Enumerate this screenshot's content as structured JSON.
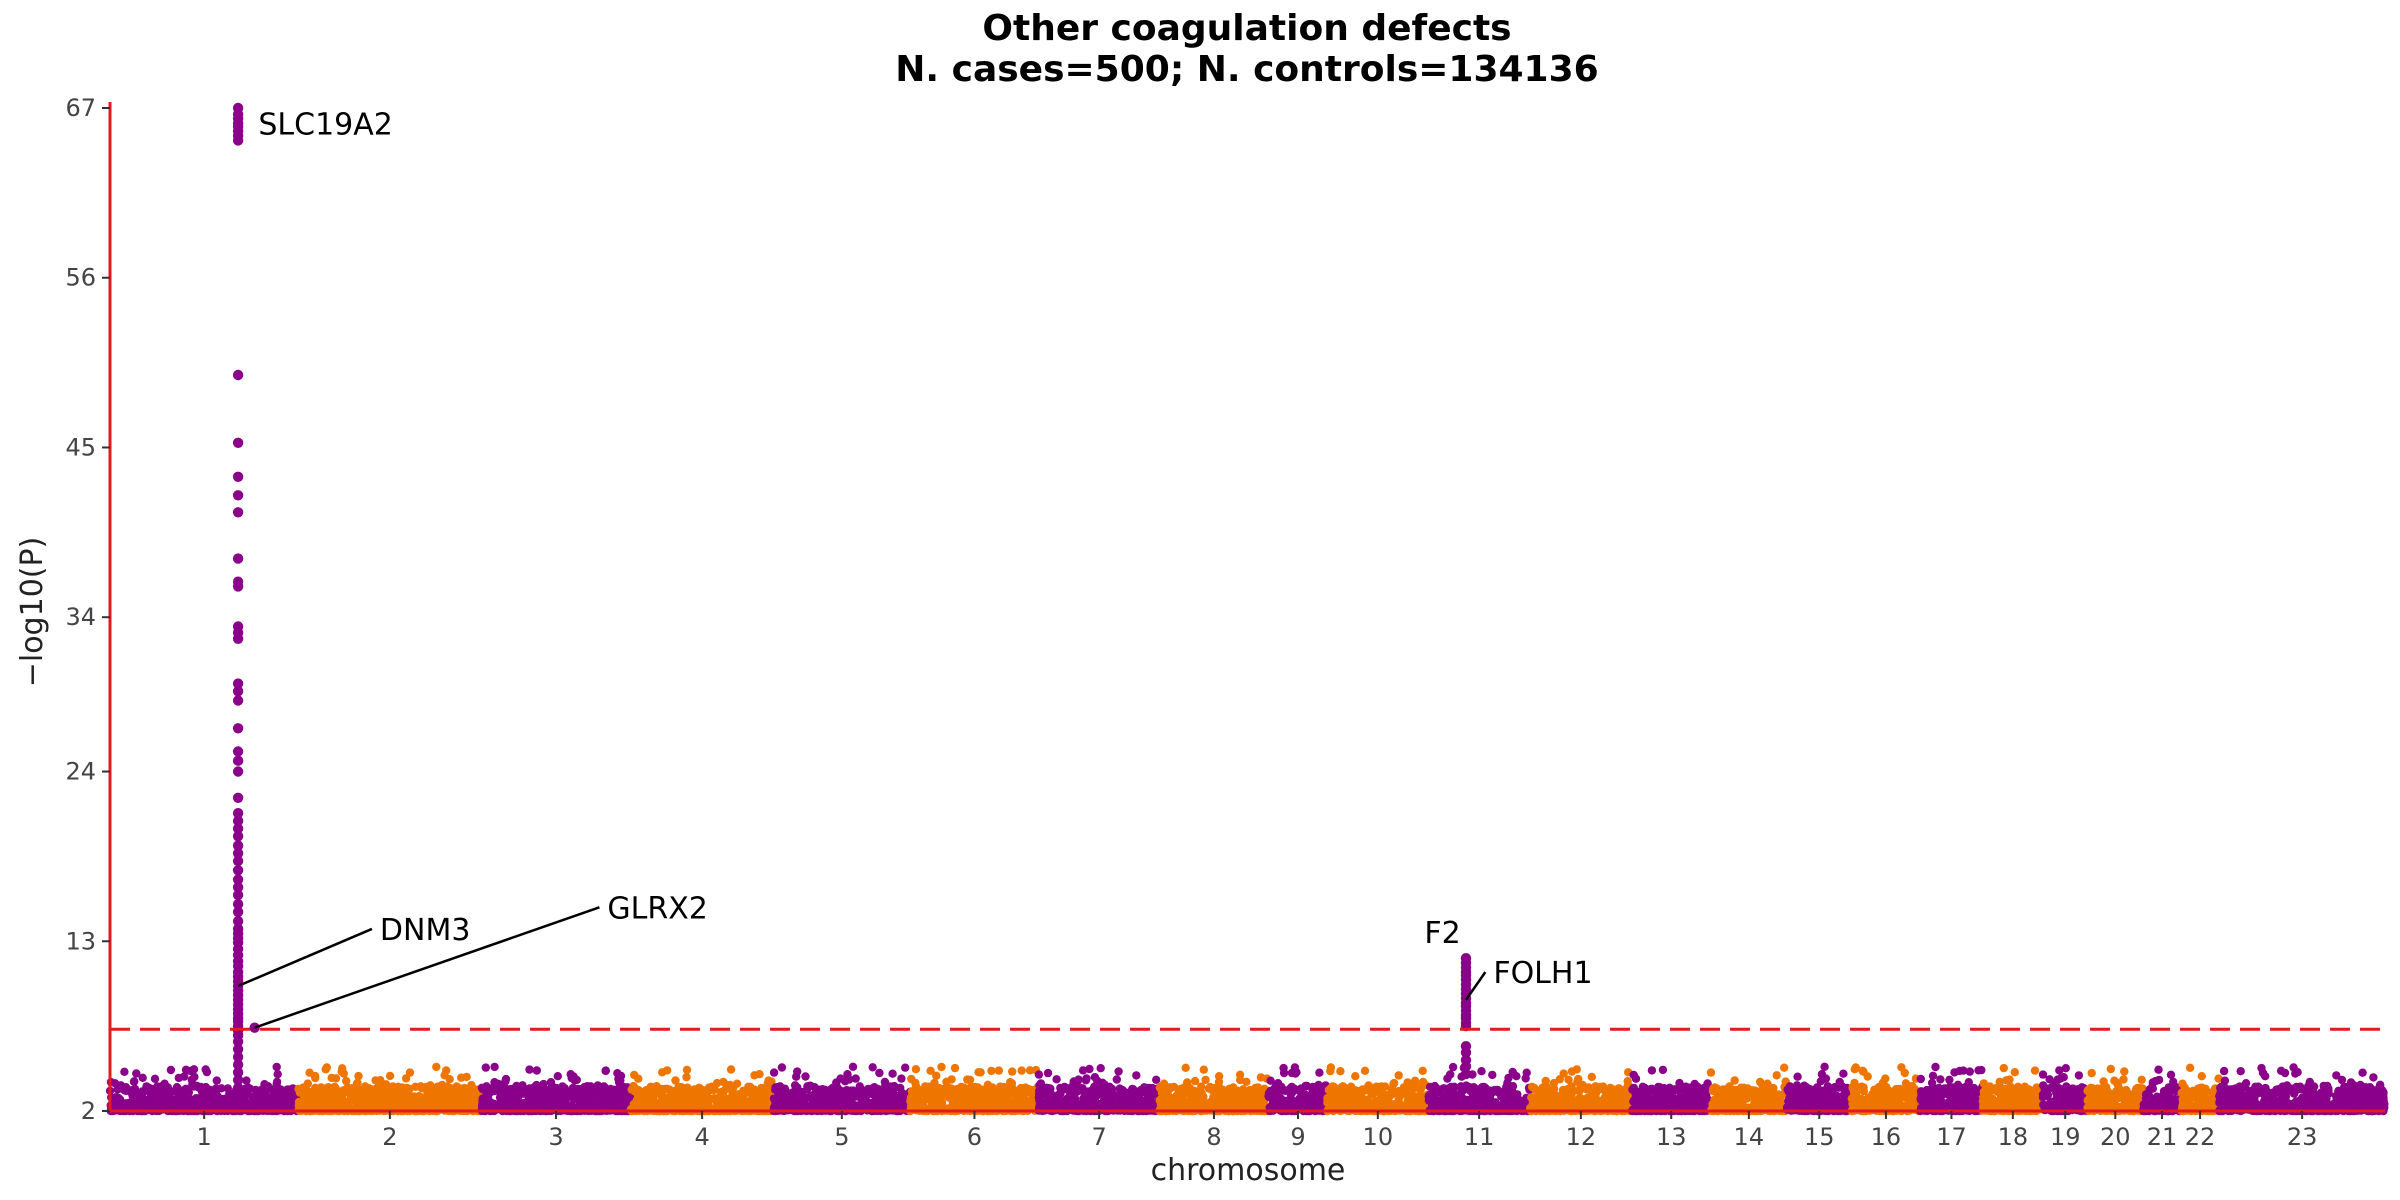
{
  "chart_data": {
    "type": "scatter",
    "subtype": "manhattan",
    "title": "Other coagulation defects",
    "subtitle": "N. cases=500; N. controls=134136",
    "xlabel": "chromosome",
    "ylabel": "−log10(P)",
    "ylim": [
      2,
      67
    ],
    "yticks": [
      2,
      13,
      24,
      34,
      45,
      56,
      67
    ],
    "significance_threshold": 7.3,
    "grid": false,
    "colors": {
      "odd": "#8B008B",
      "even": "#EE7600",
      "axis": "#E41A1C",
      "threshold": "#E41A1C"
    },
    "chromosomes": [
      {
        "label": "1",
        "start": 0,
        "end": 250
      },
      {
        "label": "2",
        "start": 250,
        "end": 493
      },
      {
        "label": "3",
        "start": 493,
        "end": 691
      },
      {
        "label": "4",
        "start": 691,
        "end": 881
      },
      {
        "label": "5",
        "start": 881,
        "end": 1062
      },
      {
        "label": "6",
        "start": 1062,
        "end": 1233
      },
      {
        "label": "7",
        "start": 1233,
        "end": 1393
      },
      {
        "label": "8",
        "start": 1393,
        "end": 1538
      },
      {
        "label": "9",
        "start": 1538,
        "end": 1616
      },
      {
        "label": "10",
        "start": 1616,
        "end": 1750
      },
      {
        "label": "11",
        "start": 1750,
        "end": 1885
      },
      {
        "label": "12",
        "start": 1885,
        "end": 2020
      },
      {
        "label": "13",
        "start": 2020,
        "end": 2125
      },
      {
        "label": "14",
        "start": 2125,
        "end": 2226
      },
      {
        "label": "15",
        "start": 2226,
        "end": 2312
      },
      {
        "label": "16",
        "start": 2312,
        "end": 2403
      },
      {
        "label": "17",
        "start": 2403,
        "end": 2486
      },
      {
        "label": "18",
        "start": 2486,
        "end": 2566
      },
      {
        "label": "19",
        "start": 2566,
        "end": 2625
      },
      {
        "label": "20",
        "start": 2625,
        "end": 2699
      },
      {
        "label": "21",
        "start": 2699,
        "end": 2749
      },
      {
        "label": "22",
        "start": 2749,
        "end": 2800
      },
      {
        "label": "23",
        "start": 2800,
        "end": 3020
      }
    ],
    "peaks": [
      {
        "chrom": "1",
        "x": 170,
        "values": [
          67,
          66.6,
          66.3,
          66,
          65.8,
          65.5,
          65.2,
          64.9,
          49.7,
          45.3,
          43.1,
          41.9,
          40.8,
          37.8,
          36.3,
          36,
          33.4,
          33,
          32.6,
          29.7,
          29.2,
          28.6,
          26.8,
          25.3,
          24.7,
          24,
          22.3,
          21.3,
          20.8,
          20.3,
          19.8,
          19.2,
          18.7,
          18.2,
          17.6,
          17,
          16.5,
          16,
          15.4,
          14.9,
          14.3,
          13.8,
          13.5,
          13.2,
          12.9,
          12.5,
          12.1,
          11.7,
          11.4,
          11,
          10.7,
          10.4,
          10.1,
          9.8,
          9.5,
          9.2,
          8.9,
          8.6,
          8.3,
          8,
          7.8,
          7.5,
          7.2,
          6.9,
          6.5,
          6,
          5.5,
          5,
          4.5,
          4,
          3.5
        ]
      },
      {
        "chrom": "1",
        "x": 192,
        "values": [
          7.4
        ]
      },
      {
        "chrom": "11",
        "x": 1800,
        "values": [
          11.9,
          11.6,
          11.3,
          11,
          10.8,
          10.5,
          10.2,
          9.9,
          9.6,
          9.3,
          9,
          8.8,
          8.5,
          8.2,
          8,
          7.7,
          7.5,
          6.2,
          5.8,
          5.3,
          4.9,
          4.4
        ]
      }
    ],
    "annotations": [
      {
        "label": "SLC19A2",
        "x": 170,
        "y": 66,
        "text_x": 197,
        "text_y": 66,
        "leader": false
      },
      {
        "label": "DNM3",
        "x": 170,
        "y": 10.1,
        "text_x": 353,
        "text_y": 13.8,
        "leader": true
      },
      {
        "label": "GLRX2",
        "x": 192,
        "y": 7.4,
        "text_x": 655,
        "text_y": 15.2,
        "leader": true
      },
      {
        "label": "F2",
        "x": 1800,
        "y": 11.9,
        "text_x": 1769,
        "text_y": 13.6,
        "leader": false
      },
      {
        "label": "FOLH1",
        "x": 1800,
        "y": 9.2,
        "text_x": 1831,
        "text_y": 11,
        "leader": true
      }
    ]
  }
}
